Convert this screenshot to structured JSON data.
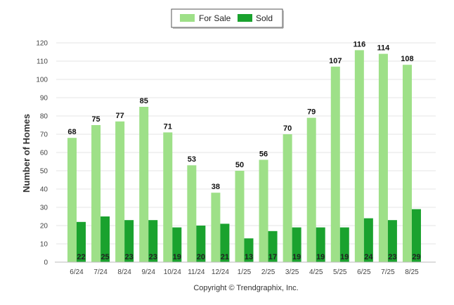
{
  "chart_data": {
    "type": "bar",
    "categories": [
      "6/24",
      "7/24",
      "8/24",
      "9/24",
      "10/24",
      "11/24",
      "12/24",
      "1/25",
      "2/25",
      "3/25",
      "4/25",
      "5/25",
      "6/25",
      "7/25",
      "8/25"
    ],
    "series": [
      {
        "name": "For Sale",
        "color": "#9ee088",
        "values": [
          68,
          75,
          77,
          85,
          71,
          53,
          38,
          50,
          56,
          70,
          79,
          107,
          116,
          114,
          108
        ]
      },
      {
        "name": "Sold",
        "color": "#1aa22e",
        "values": [
          22,
          25,
          23,
          23,
          19,
          20,
          21,
          13,
          17,
          19,
          19,
          19,
          24,
          23,
          29
        ]
      }
    ],
    "ylabel": "Number of Homes",
    "ylim": [
      0,
      120
    ],
    "yticks": [
      0,
      10,
      20,
      30,
      40,
      50,
      60,
      70,
      80,
      90,
      100,
      110,
      120
    ],
    "grid": true,
    "legend_position": "top-center"
  },
  "footer": {
    "copyright": "Copyright © Trendgraphix, Inc."
  }
}
